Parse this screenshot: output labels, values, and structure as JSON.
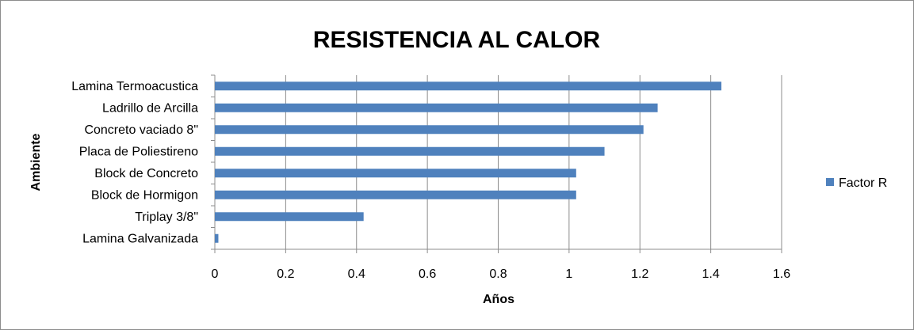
{
  "chart_data": {
    "type": "bar",
    "orientation": "horizontal",
    "title": "RESISTENCIA AL CALOR",
    "xlabel": "Años",
    "ylabel": "Ambiente",
    "categories": [
      "Lamina Termoacustica",
      "Ladrillo de Arcilla",
      "Concreto vaciado 8\"",
      "Placa de Poliestireno",
      "Block de Concreto",
      "Block de Hormigon",
      "Triplay 3/8\"",
      "Lamina Galvanizada"
    ],
    "series": [
      {
        "name": "Factor R",
        "color": "#4f81bd",
        "values": [
          1.43,
          1.25,
          1.21,
          1.1,
          1.02,
          1.02,
          0.42,
          0.01
        ]
      }
    ],
    "xlim": [
      0,
      1.6
    ],
    "xticks": [
      "0",
      "0.2",
      "0.4",
      "0.6",
      "0.8",
      "1",
      "1.2",
      "1.4",
      "1.6"
    ],
    "grid": "vertical",
    "legend": "right"
  }
}
